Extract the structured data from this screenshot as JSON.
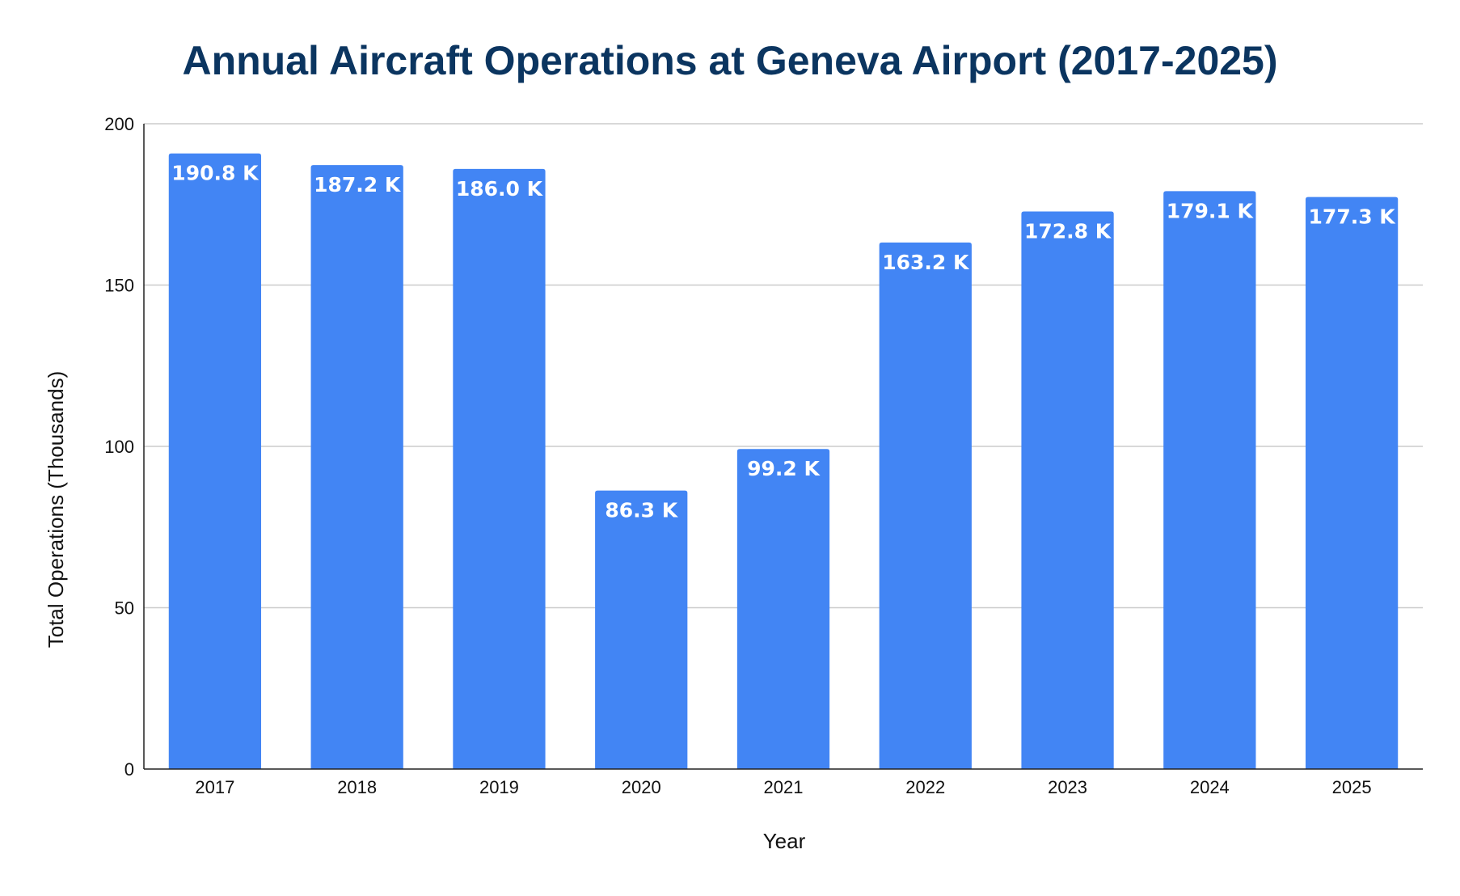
{
  "chart_data": {
    "type": "bar",
    "title": "Annual Aircraft Operations at Geneva Airport (2017-2025)",
    "xlabel": "Year",
    "ylabel": "Total Operations (Thousands)",
    "categories": [
      "2017",
      "2018",
      "2019",
      "2020",
      "2021",
      "2022",
      "2023",
      "2024",
      "2025"
    ],
    "values": [
      190.8,
      187.2,
      186.0,
      86.3,
      99.2,
      163.2,
      172.8,
      179.1,
      177.3
    ],
    "data_labels": [
      "190.8 K",
      "187.2 K",
      "186.0 K",
      "86.3 K",
      "99.2 K",
      "163.2 K",
      "172.8 K",
      "179.1 K",
      "177.3 K"
    ],
    "ylim": [
      0,
      200
    ],
    "yticks": [
      0,
      50,
      100,
      150,
      200
    ],
    "grid": true,
    "legend": "none",
    "bar_color": "#4285f4",
    "title_color": "#0b3560"
  }
}
